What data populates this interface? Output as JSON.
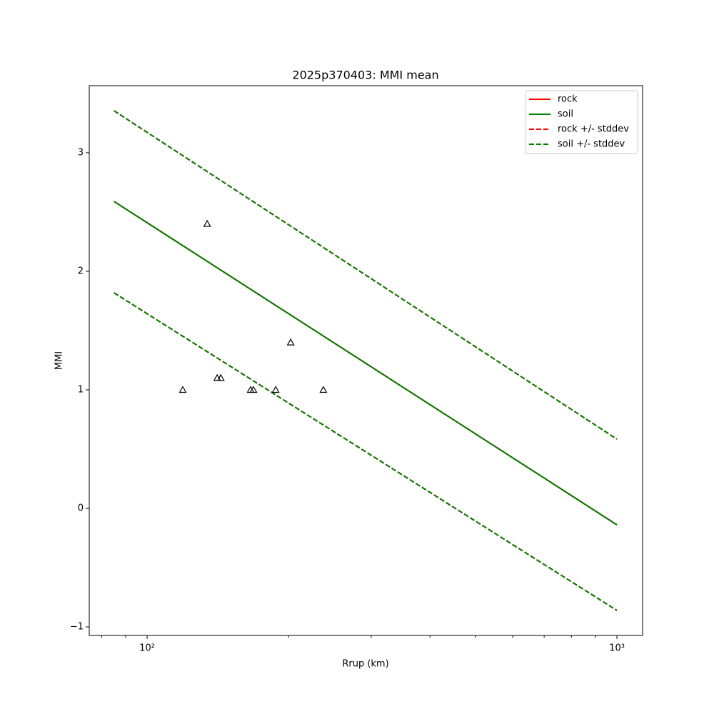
{
  "chart_data": {
    "type": "line",
    "title": "2025p370403: MMI mean",
    "xlabel": "Rrup (km)",
    "ylabel": "MMI",
    "xscale": "log",
    "xlim": [
      75.3,
      1134
    ],
    "ylim": [
      -1.072,
      3.566
    ],
    "xticks": [
      {
        "value": 100,
        "label": "10²"
      },
      {
        "value": 1000,
        "label": "10³"
      }
    ],
    "xminorticks": [
      80,
      90,
      200,
      300,
      400,
      500,
      600,
      700,
      800,
      900
    ],
    "yticks": [
      {
        "value": -1,
        "label": "−1"
      },
      0,
      1,
      2,
      3
    ],
    "legend": "upper right",
    "x": [
      85,
      1000
    ],
    "series": [
      {
        "name": "rock",
        "color": "#ff0000",
        "dash": false,
        "values": [
          2.59,
          -0.139
        ]
      },
      {
        "name": "soil",
        "color": "#008000",
        "dash": false,
        "values": [
          2.59,
          -0.139
        ]
      },
      {
        "name": "rock +/- stddev",
        "color": "#ff0000",
        "dash": true,
        "upper": [
          3.355,
          0.584
        ],
        "lower": [
          1.819,
          -0.861
        ]
      },
      {
        "name": "soil +/- stddev",
        "color": "#008000",
        "dash": true,
        "upper": [
          3.355,
          0.584
        ],
        "lower": [
          1.819,
          -0.861
        ]
      }
    ],
    "observations": {
      "color": "#000000",
      "x": [
        119.1,
        134.2,
        141.0,
        143.5,
        166.1,
        168.4,
        187.8,
        202.1,
        237.2
      ],
      "y": [
        1.0,
        2.4,
        1.1,
        1.1,
        1.0,
        1.0,
        1.0,
        1.4,
        1.0
      ]
    }
  }
}
